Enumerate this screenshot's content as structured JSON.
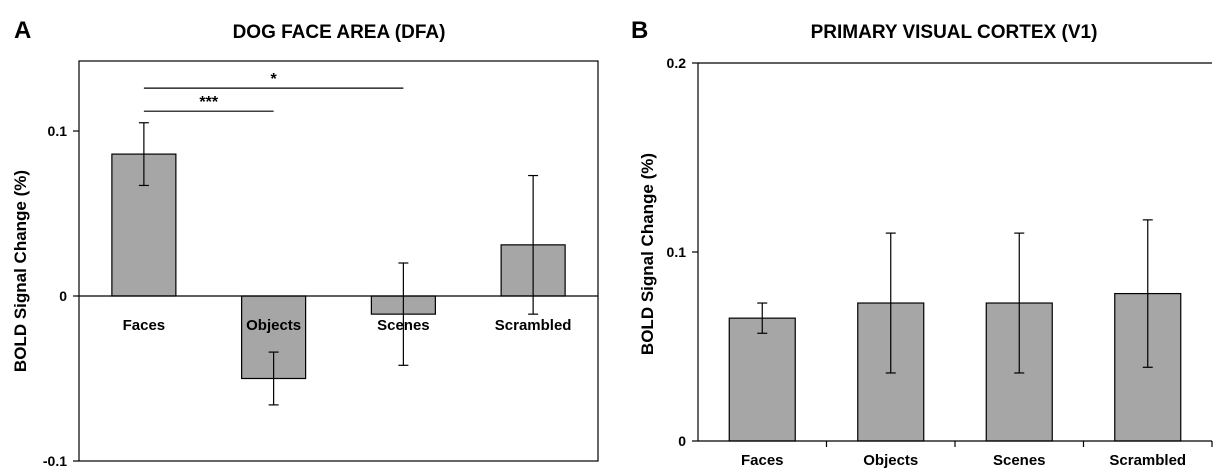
{
  "chart_data": [
    {
      "type": "bar",
      "panel_letter": "A",
      "title": "DOG FACE AREA (DFA)",
      "ylabel": "BOLD Signal Change (%)",
      "xlabel": "",
      "categories": [
        "Faces",
        "Objects",
        "Scenes",
        "Scrambled"
      ],
      "values": [
        0.086,
        -0.05,
        -0.011,
        0.031
      ],
      "error": [
        0.019,
        0.016,
        0.031,
        0.042
      ],
      "ylim": [
        -0.1,
        0.14
      ],
      "yticks": [
        -0.1,
        0,
        0.1
      ],
      "ytick_labels": [
        "-0.1",
        "0",
        "0.1"
      ],
      "grid": false,
      "bar_color": "#a6a6a6",
      "significance": [
        {
          "from": "Faces",
          "to": "Scenes",
          "label": "*"
        },
        {
          "from": "Faces",
          "to": "Objects",
          "label": "***"
        }
      ]
    },
    {
      "type": "bar",
      "panel_letter": "B",
      "title": "PRIMARY VISUAL CORTEX (V1)",
      "ylabel": "BOLD Signal Change (%)",
      "xlabel": "",
      "categories": [
        "Faces",
        "Objects",
        "Scenes",
        "Scrambled"
      ],
      "values": [
        0.065,
        0.073,
        0.073,
        0.078
      ],
      "error": [
        0.008,
        0.037,
        0.037,
        0.039
      ],
      "ylim": [
        0,
        0.2
      ],
      "yticks": [
        0,
        0.1,
        0.2
      ],
      "ytick_labels": [
        "0",
        "0.1",
        "0.2"
      ],
      "grid": false,
      "bar_color": "#a6a6a6",
      "significance": []
    }
  ]
}
